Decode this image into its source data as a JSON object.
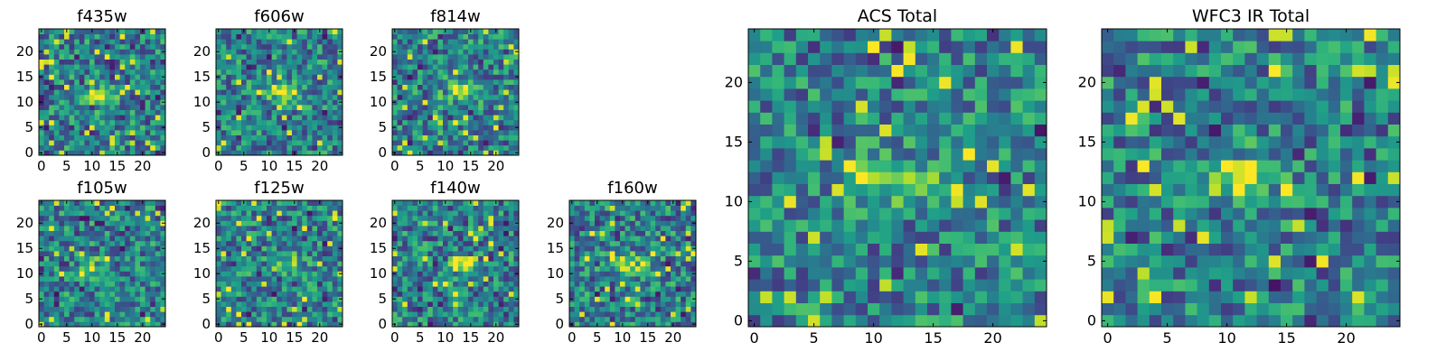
{
  "chart_data": [
    {
      "type": "heatmap",
      "title": "f435w",
      "colormap": "viridis",
      "xlim": [
        0,
        24
      ],
      "ylim": [
        0,
        24
      ],
      "grid": false,
      "xticks": [
        "0",
        "5",
        "10",
        "15",
        "20"
      ],
      "yticks": [
        "0",
        "5",
        "10",
        "15",
        "20"
      ],
      "blob_center": [
        12,
        11
      ],
      "blob_strength": 0.6
    },
    {
      "type": "heatmap",
      "title": "f606w",
      "colormap": "viridis",
      "xlim": [
        0,
        24
      ],
      "ylim": [
        0,
        24
      ],
      "grid": false,
      "xticks": [
        "0",
        "5",
        "10",
        "15",
        "20"
      ],
      "yticks": [
        "0",
        "5",
        "10",
        "15",
        "20"
      ],
      "blob_center": [
        13,
        12
      ],
      "blob_strength": 0.9
    },
    {
      "type": "heatmap",
      "title": "f814w",
      "colormap": "viridis",
      "xlim": [
        0,
        24
      ],
      "ylim": [
        0,
        24
      ],
      "grid": false,
      "xticks": [
        "0",
        "5",
        "10",
        "15",
        "20"
      ],
      "yticks": [
        "0",
        "5",
        "10",
        "15",
        "20"
      ],
      "blob_center": [
        13,
        12
      ],
      "blob_strength": 0.9
    },
    {
      "type": "heatmap",
      "title": "f105w",
      "colormap": "viridis",
      "xlim": [
        0,
        24
      ],
      "ylim": [
        0,
        24
      ],
      "grid": false,
      "xticks": [
        "0",
        "5",
        "10",
        "15",
        "20"
      ],
      "yticks": [
        "0",
        "5",
        "10",
        "15",
        "20"
      ],
      "blob_center": [
        10,
        11
      ],
      "blob_strength": 0.8
    },
    {
      "type": "heatmap",
      "title": "f125w",
      "colormap": "viridis",
      "xlim": [
        0,
        24
      ],
      "ylim": [
        0,
        24
      ],
      "grid": false,
      "xticks": [
        "0",
        "5",
        "10",
        "15",
        "20"
      ],
      "yticks": [
        "0",
        "5",
        "10",
        "15",
        "20"
      ],
      "blob_center": [
        13,
        12
      ],
      "blob_strength": 0.7
    },
    {
      "type": "heatmap",
      "title": "f140w",
      "colormap": "viridis",
      "xlim": [
        0,
        24
      ],
      "ylim": [
        0,
        24
      ],
      "grid": false,
      "xticks": [
        "0",
        "5",
        "10",
        "15",
        "20"
      ],
      "yticks": [
        "0",
        "5",
        "10",
        "15",
        "20"
      ],
      "blob_center": [
        14,
        12
      ],
      "blob_strength": 0.8
    },
    {
      "type": "heatmap",
      "title": "f160w",
      "colormap": "viridis",
      "xlim": [
        0,
        24
      ],
      "ylim": [
        0,
        24
      ],
      "grid": false,
      "xticks": [
        "0",
        "5",
        "10",
        "15",
        "20"
      ],
      "yticks": [
        "0",
        "5",
        "10",
        "15",
        "20"
      ],
      "blob_center": [
        11,
        12
      ],
      "blob_strength": 0.9
    },
    {
      "type": "heatmap",
      "title": "ACS Total",
      "colormap": "viridis",
      "xlim": [
        0,
        24
      ],
      "ylim": [
        0,
        24
      ],
      "grid": false,
      "xticks": [
        "0",
        "5",
        "10",
        "15",
        "20"
      ],
      "yticks": [
        "0",
        "5",
        "10",
        "15",
        "20"
      ],
      "blob_center": [
        12,
        12
      ],
      "blob_strength": 0.8
    },
    {
      "type": "heatmap",
      "title": "WFC3 IR Total",
      "colormap": "viridis",
      "xlim": [
        0,
        24
      ],
      "ylim": [
        0,
        24
      ],
      "grid": false,
      "xticks": [
        "0",
        "5",
        "10",
        "15",
        "20"
      ],
      "yticks": [
        "0",
        "5",
        "10",
        "15",
        "20"
      ],
      "blob_center": [
        11,
        12
      ],
      "blob_strength": 1.0
    }
  ]
}
